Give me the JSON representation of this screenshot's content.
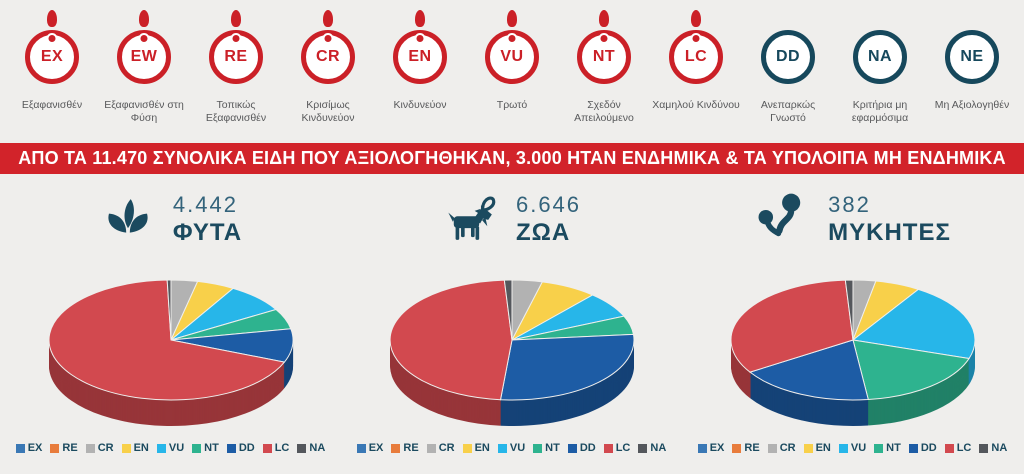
{
  "palette": {
    "EX": "#3a78b5",
    "RE": "#e87c3c",
    "CR": "#b2b2b2",
    "EN": "#f8d04a",
    "VU": "#27b6e9",
    "NT": "#2eb38f",
    "DD": "#1d5ca5",
    "LC": "#d2494f",
    "NA": "#54575c"
  },
  "colors": {
    "background": "#efeeec",
    "badge_red": "#cb2027",
    "badge_teal": "#16485c",
    "badge_label_text": "#58595b",
    "banner_bg": "#d2232a",
    "banner_text": "#ffffff",
    "heading_teal": "#1b4a5f",
    "count_teal": "#33637b"
  },
  "badges": [
    {
      "code": "EX",
      "label": "Εξαφανισθέν",
      "style": "red",
      "exclamation": true
    },
    {
      "code": "EW",
      "label": "Εξαφανισθέν στη Φύση",
      "style": "red",
      "exclamation": true
    },
    {
      "code": "RE",
      "label": "Τοπικώς Εξαφανισθέν",
      "style": "red",
      "exclamation": true
    },
    {
      "code": "CR",
      "label": "Κρισίμως Κινδυνεύον",
      "style": "red",
      "exclamation": true
    },
    {
      "code": "EN",
      "label": "Κινδυνεύον",
      "style": "red",
      "exclamation": true
    },
    {
      "code": "VU",
      "label": "Τρωτό",
      "style": "red",
      "exclamation": true
    },
    {
      "code": "NT",
      "label": "Σχεδόν Απειλούμενο",
      "style": "red",
      "exclamation": true
    },
    {
      "code": "LC",
      "label": "Χαμηλού Κινδύνου",
      "style": "red",
      "exclamation": true
    },
    {
      "code": "DD",
      "label": "Ανεπαρκώς Γνωστό",
      "style": "teal",
      "exclamation": false
    },
    {
      "code": "NA",
      "label": "Κριτήρια μη εφαρμόσιμα",
      "style": "teal",
      "exclamation": false
    },
    {
      "code": "NE",
      "label": "Μη Αξιολογηθέν",
      "style": "teal",
      "exclamation": false
    }
  ],
  "banner": {
    "text": "ΑΠΟ ΤΑ 11.470 ΣΥΝΟΛΙΚΑ ΕΙΔΗ ΠΟΥ ΑΞΙΟΛΟΓΗΘΗΚΑΝ, 3.000 ΗΤΑΝ ΕΝΔΗΜΙΚΑ & ΤΑ ΥΠΟΛΟΙΠΑ ΜΗ ΕΝΔΗΜΙΚΑ"
  },
  "chart_data": [
    {
      "type": "pie",
      "title": "ΦΥΤΑ",
      "total_label": "4.442",
      "icon": "plant-icon",
      "categories": [
        "EX",
        "RE",
        "CR",
        "EN",
        "VU",
        "NT",
        "DD",
        "LC",
        "NA"
      ],
      "values_percent": [
        0,
        0,
        3.5,
        5,
        8,
        5.5,
        9,
        68.5,
        0.5
      ],
      "style": "3d-pie",
      "legend_position": "bottom"
    },
    {
      "type": "pie",
      "title": "ΖΩΑ",
      "total_label": "6.646",
      "icon": "goat-icon",
      "categories": [
        "EX",
        "RE",
        "CR",
        "EN",
        "VU",
        "NT",
        "DD",
        "LC",
        "NA"
      ],
      "values_percent": [
        0,
        0,
        4,
        7.5,
        7,
        5,
        28,
        47.5,
        1
      ],
      "style": "3d-pie",
      "legend_position": "bottom"
    },
    {
      "type": "pie",
      "title": "ΜΥΚΗΤΕΣ",
      "total_label": "382",
      "icon": "mushroom-icon",
      "categories": [
        "EX",
        "RE",
        "CR",
        "EN",
        "VU",
        "NT",
        "DD",
        "LC",
        "NA"
      ],
      "values_percent": [
        0,
        0,
        3,
        6,
        21,
        18,
        18,
        33,
        1
      ],
      "style": "3d-pie",
      "legend_position": "bottom"
    }
  ],
  "legend_codes": [
    "EX",
    "RE",
    "CR",
    "EN",
    "VU",
    "NT",
    "DD",
    "LC",
    "NA"
  ]
}
